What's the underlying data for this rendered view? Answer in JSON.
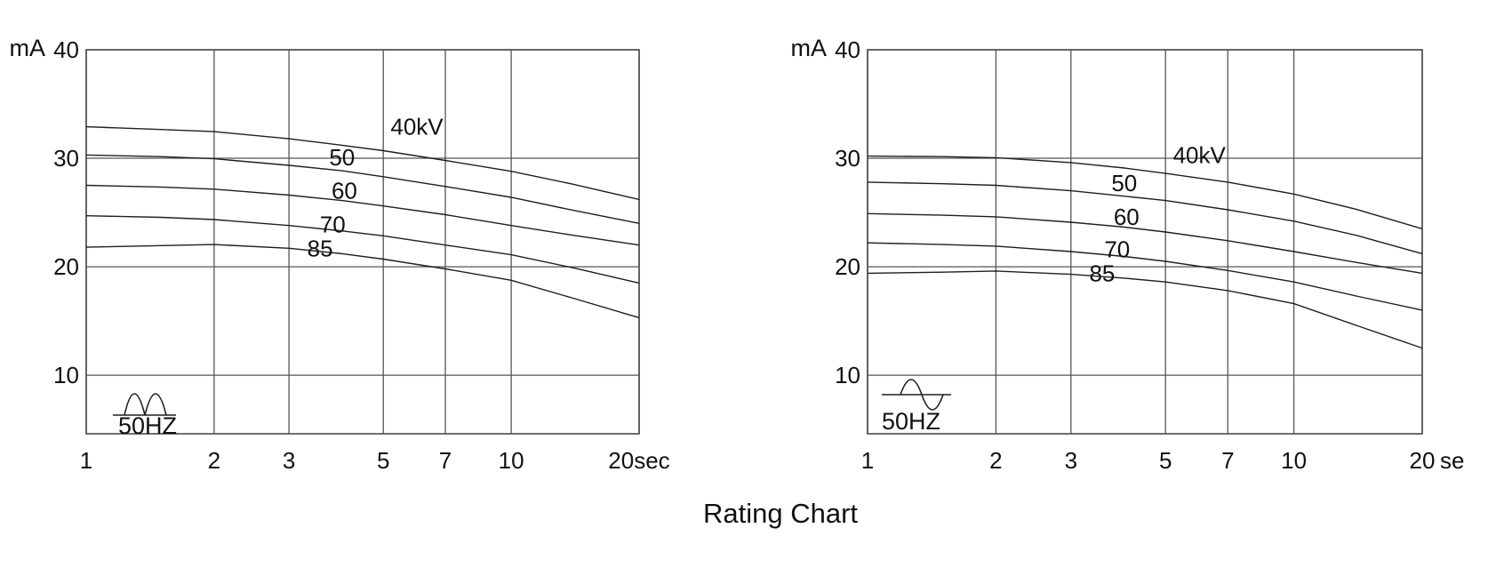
{
  "page_title": "Rating Chart",
  "colors": {
    "background": "#ffffff",
    "curve": "#1f1f1f",
    "grid": "#555555",
    "text": "#111111"
  },
  "chart_data": [
    {
      "name": "left-rating-chart",
      "type": "line",
      "x_scale": "log",
      "xlim": [
        1,
        20
      ],
      "ylim": [
        4.6,
        40
      ],
      "ylabel": "mA",
      "grid": true,
      "frequency_label": "50HZ",
      "waveform": "full-wave-rectified",
      "x_ticks": [
        1,
        2,
        3,
        5,
        7,
        10,
        20
      ],
      "x_tick_labels": [
        "1",
        "2",
        "3",
        "5",
        "7",
        "10",
        "20sec"
      ],
      "y_ticks": [
        10,
        20,
        30,
        40
      ],
      "y_tick_labels": [
        "10",
        "20",
        "30",
        "40"
      ],
      "x": [
        1,
        1.5,
        2,
        3,
        4,
        5,
        7,
        10,
        14,
        20
      ],
      "series": [
        {
          "name": "40kV",
          "values": [
            32.9,
            32.65,
            32.45,
            31.8,
            31.2,
            30.7,
            29.8,
            28.8,
            27.6,
            26.2
          ],
          "label_x": 6.0,
          "label_y": 32.9
        },
        {
          "name": "50",
          "values": [
            30.3,
            30.15,
            29.95,
            29.35,
            28.85,
            28.3,
            27.4,
            26.4,
            25.2,
            24.0
          ],
          "label_x": 4.0,
          "label_y": 30.1
        },
        {
          "name": "60",
          "values": [
            27.5,
            27.35,
            27.15,
            26.6,
            26.1,
            25.6,
            24.8,
            23.8,
            22.9,
            22.0
          ],
          "label_x": 4.05,
          "label_y": 27.0
        },
        {
          "name": "70",
          "values": [
            24.7,
            24.55,
            24.35,
            23.8,
            23.3,
            22.85,
            22.0,
            21.1,
            19.9,
            18.5
          ],
          "label_x": 3.8,
          "label_y": 23.9
        },
        {
          "name": "85",
          "values": [
            21.8,
            21.95,
            22.05,
            21.7,
            21.2,
            20.7,
            19.8,
            18.75,
            17.1,
            15.3
          ],
          "label_x": 3.55,
          "label_y": 21.7
        }
      ]
    },
    {
      "name": "right-rating-chart",
      "type": "line",
      "x_scale": "log",
      "xlim": [
        1,
        20
      ],
      "ylim": [
        4.6,
        40
      ],
      "ylabel": "mA",
      "grid": true,
      "frequency_label": "50HZ",
      "waveform": "sine",
      "x_ticks": [
        1,
        2,
        3,
        5,
        7,
        10,
        20
      ],
      "x_tick_labels": [
        "1",
        "2",
        "3",
        "5",
        "7",
        "10",
        "20"
      ],
      "x_end_unit": "se",
      "y_ticks": [
        10,
        20,
        30,
        40
      ],
      "y_tick_labels": [
        "10",
        "20",
        "30",
        "40"
      ],
      "x": [
        1,
        1.5,
        2,
        3,
        4,
        5,
        7,
        10,
        14,
        20
      ],
      "series": [
        {
          "name": "40kV",
          "values": [
            30.2,
            30.15,
            30.05,
            29.6,
            29.1,
            28.6,
            27.8,
            26.7,
            25.3,
            23.5
          ],
          "label_x": 6.0,
          "label_y": 30.3
        },
        {
          "name": "50",
          "values": [
            27.8,
            27.65,
            27.5,
            27.0,
            26.5,
            26.1,
            25.25,
            24.2,
            22.9,
            21.2
          ],
          "label_x": 4.0,
          "label_y": 27.7
        },
        {
          "name": "60",
          "values": [
            24.9,
            24.75,
            24.6,
            24.1,
            23.65,
            23.2,
            22.4,
            21.4,
            20.4,
            19.4
          ],
          "label_x": 4.05,
          "label_y": 24.6
        },
        {
          "name": "70",
          "values": [
            22.2,
            22.05,
            21.9,
            21.4,
            20.95,
            20.5,
            19.65,
            18.6,
            17.3,
            16.0
          ],
          "label_x": 3.85,
          "label_y": 21.6
        },
        {
          "name": "85",
          "values": [
            19.4,
            19.5,
            19.6,
            19.3,
            18.95,
            18.6,
            17.8,
            16.6,
            14.6,
            12.5
          ],
          "label_x": 3.55,
          "label_y": 19.4
        }
      ]
    }
  ]
}
